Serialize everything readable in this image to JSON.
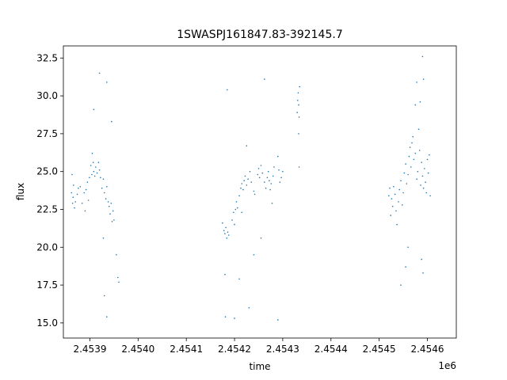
{
  "chart_data": {
    "type": "scatter",
    "title": "1SWASPJ161847.83-392145.7",
    "xlabel": "time",
    "ylabel": "flux",
    "x_offset_label": "1e6",
    "xlim": [
      2453845,
      2454660
    ],
    "ylim": [
      14.0,
      33.3
    ],
    "x_ticks": [
      2453900,
      2454000,
      2454100,
      2454200,
      2454300,
      2454400,
      2454500,
      2454600
    ],
    "x_tick_labels": [
      "2.4539",
      "2.4540",
      "2.4541",
      "2.4542",
      "2.4543",
      "2.4544",
      "2.4545",
      "2.4546"
    ],
    "y_ticks": [
      15.0,
      17.5,
      20.0,
      22.5,
      25.0,
      27.5,
      30.0,
      32.5
    ],
    "y_tick_labels": [
      "15.0",
      "17.5",
      "20.0",
      "22.5",
      "25.0",
      "27.5",
      "30.0",
      "32.5"
    ],
    "grid": false,
    "point_color": "#1f77b4",
    "series": [
      {
        "points": [
          [
            2453862,
            23.6
          ],
          [
            2453863,
            24.8
          ],
          [
            2453864,
            22.9
          ],
          [
            2453865,
            23.3
          ],
          [
            2453866,
            24.1
          ],
          [
            2453868,
            22.6
          ],
          [
            2453870,
            23.0
          ],
          [
            2453874,
            23.5
          ],
          [
            2453876,
            23.9
          ],
          [
            2453880,
            24.0
          ],
          [
            2453884,
            22.9
          ],
          [
            2453888,
            23.6
          ],
          [
            2453890,
            22.4
          ],
          [
            2453892,
            23.8
          ],
          [
            2453895,
            24.3
          ],
          [
            2453897,
            23.1
          ],
          [
            2453899,
            24.6
          ],
          [
            2453902,
            25.4
          ],
          [
            2453904,
            24.8
          ],
          [
            2453905,
            26.2
          ],
          [
            2453907,
            25.6
          ],
          [
            2453908,
            25.0
          ],
          [
            2453910,
            24.7
          ],
          [
            2453912,
            25.3
          ],
          [
            2453915,
            24.9
          ],
          [
            2453918,
            25.6
          ],
          [
            2453920,
            25.1
          ],
          [
            2453922,
            24.6
          ],
          [
            2453925,
            23.9
          ],
          [
            2453928,
            24.5
          ],
          [
            2453930,
            23.6
          ],
          [
            2453933,
            23.2
          ],
          [
            2453935,
            24.0
          ],
          [
            2453938,
            23.0
          ],
          [
            2453940,
            22.7
          ],
          [
            2453942,
            22.2
          ],
          [
            2453944,
            22.9
          ],
          [
            2453946,
            21.7
          ],
          [
            2453948,
            22.4
          ],
          [
            2453950,
            21.8
          ],
          [
            2453955,
            19.5
          ],
          [
            2453958,
            18.0
          ],
          [
            2453960,
            17.7
          ],
          [
            2453930,
            16.8
          ],
          [
            2453928,
            20.6
          ],
          [
            2453935,
            15.4
          ],
          [
            2453908,
            29.1
          ],
          [
            2453935,
            30.9
          ],
          [
            2453945,
            28.3
          ],
          [
            2453920,
            31.5
          ],
          [
            2454175,
            21.6
          ],
          [
            2454178,
            21.1
          ],
          [
            2454180,
            20.9
          ],
          [
            2454182,
            21.3
          ],
          [
            2454184,
            20.6
          ],
          [
            2454186,
            21.0
          ],
          [
            2454188,
            20.8
          ],
          [
            2454195,
            21.8
          ],
          [
            2454198,
            22.3
          ],
          [
            2454200,
            21.5
          ],
          [
            2454202,
            22.5
          ],
          [
            2454204,
            23.0
          ],
          [
            2454206,
            22.6
          ],
          [
            2454210,
            23.4
          ],
          [
            2454213,
            23.9
          ],
          [
            2454215,
            24.2
          ],
          [
            2454218,
            23.8
          ],
          [
            2454220,
            24.4
          ],
          [
            2454222,
            24.7
          ],
          [
            2454225,
            24.1
          ],
          [
            2454228,
            24.5
          ],
          [
            2454232,
            25.0
          ],
          [
            2454235,
            24.3
          ],
          [
            2454240,
            23.7
          ],
          [
            2454242,
            23.5
          ],
          [
            2454248,
            24.8
          ],
          [
            2454250,
            25.2
          ],
          [
            2454252,
            24.6
          ],
          [
            2454255,
            25.4
          ],
          [
            2454258,
            24.9
          ],
          [
            2454262,
            24.3
          ],
          [
            2454265,
            23.9
          ],
          [
            2454268,
            24.6
          ],
          [
            2454270,
            25.0
          ],
          [
            2454272,
            24.4
          ],
          [
            2454274,
            23.8
          ],
          [
            2454276,
            24.2
          ],
          [
            2454278,
            22.9
          ],
          [
            2454280,
            24.7
          ],
          [
            2454282,
            25.3
          ],
          [
            2454290,
            26.0
          ],
          [
            2454292,
            25.1
          ],
          [
            2454294,
            24.3
          ],
          [
            2454297,
            24.6
          ],
          [
            2454300,
            25.0
          ],
          [
            2454330,
            28.9
          ],
          [
            2454331,
            29.7
          ],
          [
            2454332,
            30.2
          ],
          [
            2454333,
            29.4
          ],
          [
            2454334,
            28.6
          ],
          [
            2454335,
            30.6
          ],
          [
            2454333,
            27.5
          ],
          [
            2454334,
            25.3
          ],
          [
            2454185,
            30.4
          ],
          [
            2454180,
            18.2
          ],
          [
            2454181,
            15.4
          ],
          [
            2454200,
            15.3
          ],
          [
            2454210,
            17.9
          ],
          [
            2454215,
            22.3
          ],
          [
            2454225,
            26.7
          ],
          [
            2454230,
            16.0
          ],
          [
            2454240,
            19.5
          ],
          [
            2454255,
            20.6
          ],
          [
            2454262,
            31.1
          ],
          [
            2454290,
            15.2
          ],
          [
            2454520,
            23.4
          ],
          [
            2454522,
            23.9
          ],
          [
            2454524,
            22.1
          ],
          [
            2454526,
            23.2
          ],
          [
            2454528,
            22.7
          ],
          [
            2454530,
            24.0
          ],
          [
            2454533,
            23.5
          ],
          [
            2454535,
            22.4
          ],
          [
            2454537,
            21.5
          ],
          [
            2454540,
            23.0
          ],
          [
            2454542,
            23.8
          ],
          [
            2454545,
            24.4
          ],
          [
            2454548,
            22.8
          ],
          [
            2454550,
            23.6
          ],
          [
            2454552,
            24.9
          ],
          [
            2454555,
            25.5
          ],
          [
            2454557,
            24.2
          ],
          [
            2454560,
            24.8
          ],
          [
            2454562,
            26.0
          ],
          [
            2454564,
            26.6
          ],
          [
            2454566,
            25.3
          ],
          [
            2454568,
            26.9
          ],
          [
            2454570,
            27.3
          ],
          [
            2454572,
            25.8
          ],
          [
            2454575,
            26.2
          ],
          [
            2454578,
            24.5
          ],
          [
            2454580,
            25.0
          ],
          [
            2454582,
            27.8
          ],
          [
            2454584,
            26.4
          ],
          [
            2454586,
            24.1
          ],
          [
            2454588,
            25.6
          ],
          [
            2454590,
            24.7
          ],
          [
            2454592,
            23.9
          ],
          [
            2454594,
            25.2
          ],
          [
            2454596,
            24.3
          ],
          [
            2454598,
            23.6
          ],
          [
            2454600,
            25.8
          ],
          [
            2454602,
            24.9
          ],
          [
            2454604,
            26.1
          ],
          [
            2454606,
            23.4
          ],
          [
            2454575,
            29.4
          ],
          [
            2454578,
            30.9
          ],
          [
            2454585,
            29.6
          ],
          [
            2454590,
            32.6
          ],
          [
            2454592,
            31.1
          ],
          [
            2454545,
            17.5
          ],
          [
            2454555,
            18.7
          ],
          [
            2454560,
            20.0
          ],
          [
            2454588,
            19.2
          ],
          [
            2454591,
            18.3
          ]
        ]
      }
    ]
  }
}
